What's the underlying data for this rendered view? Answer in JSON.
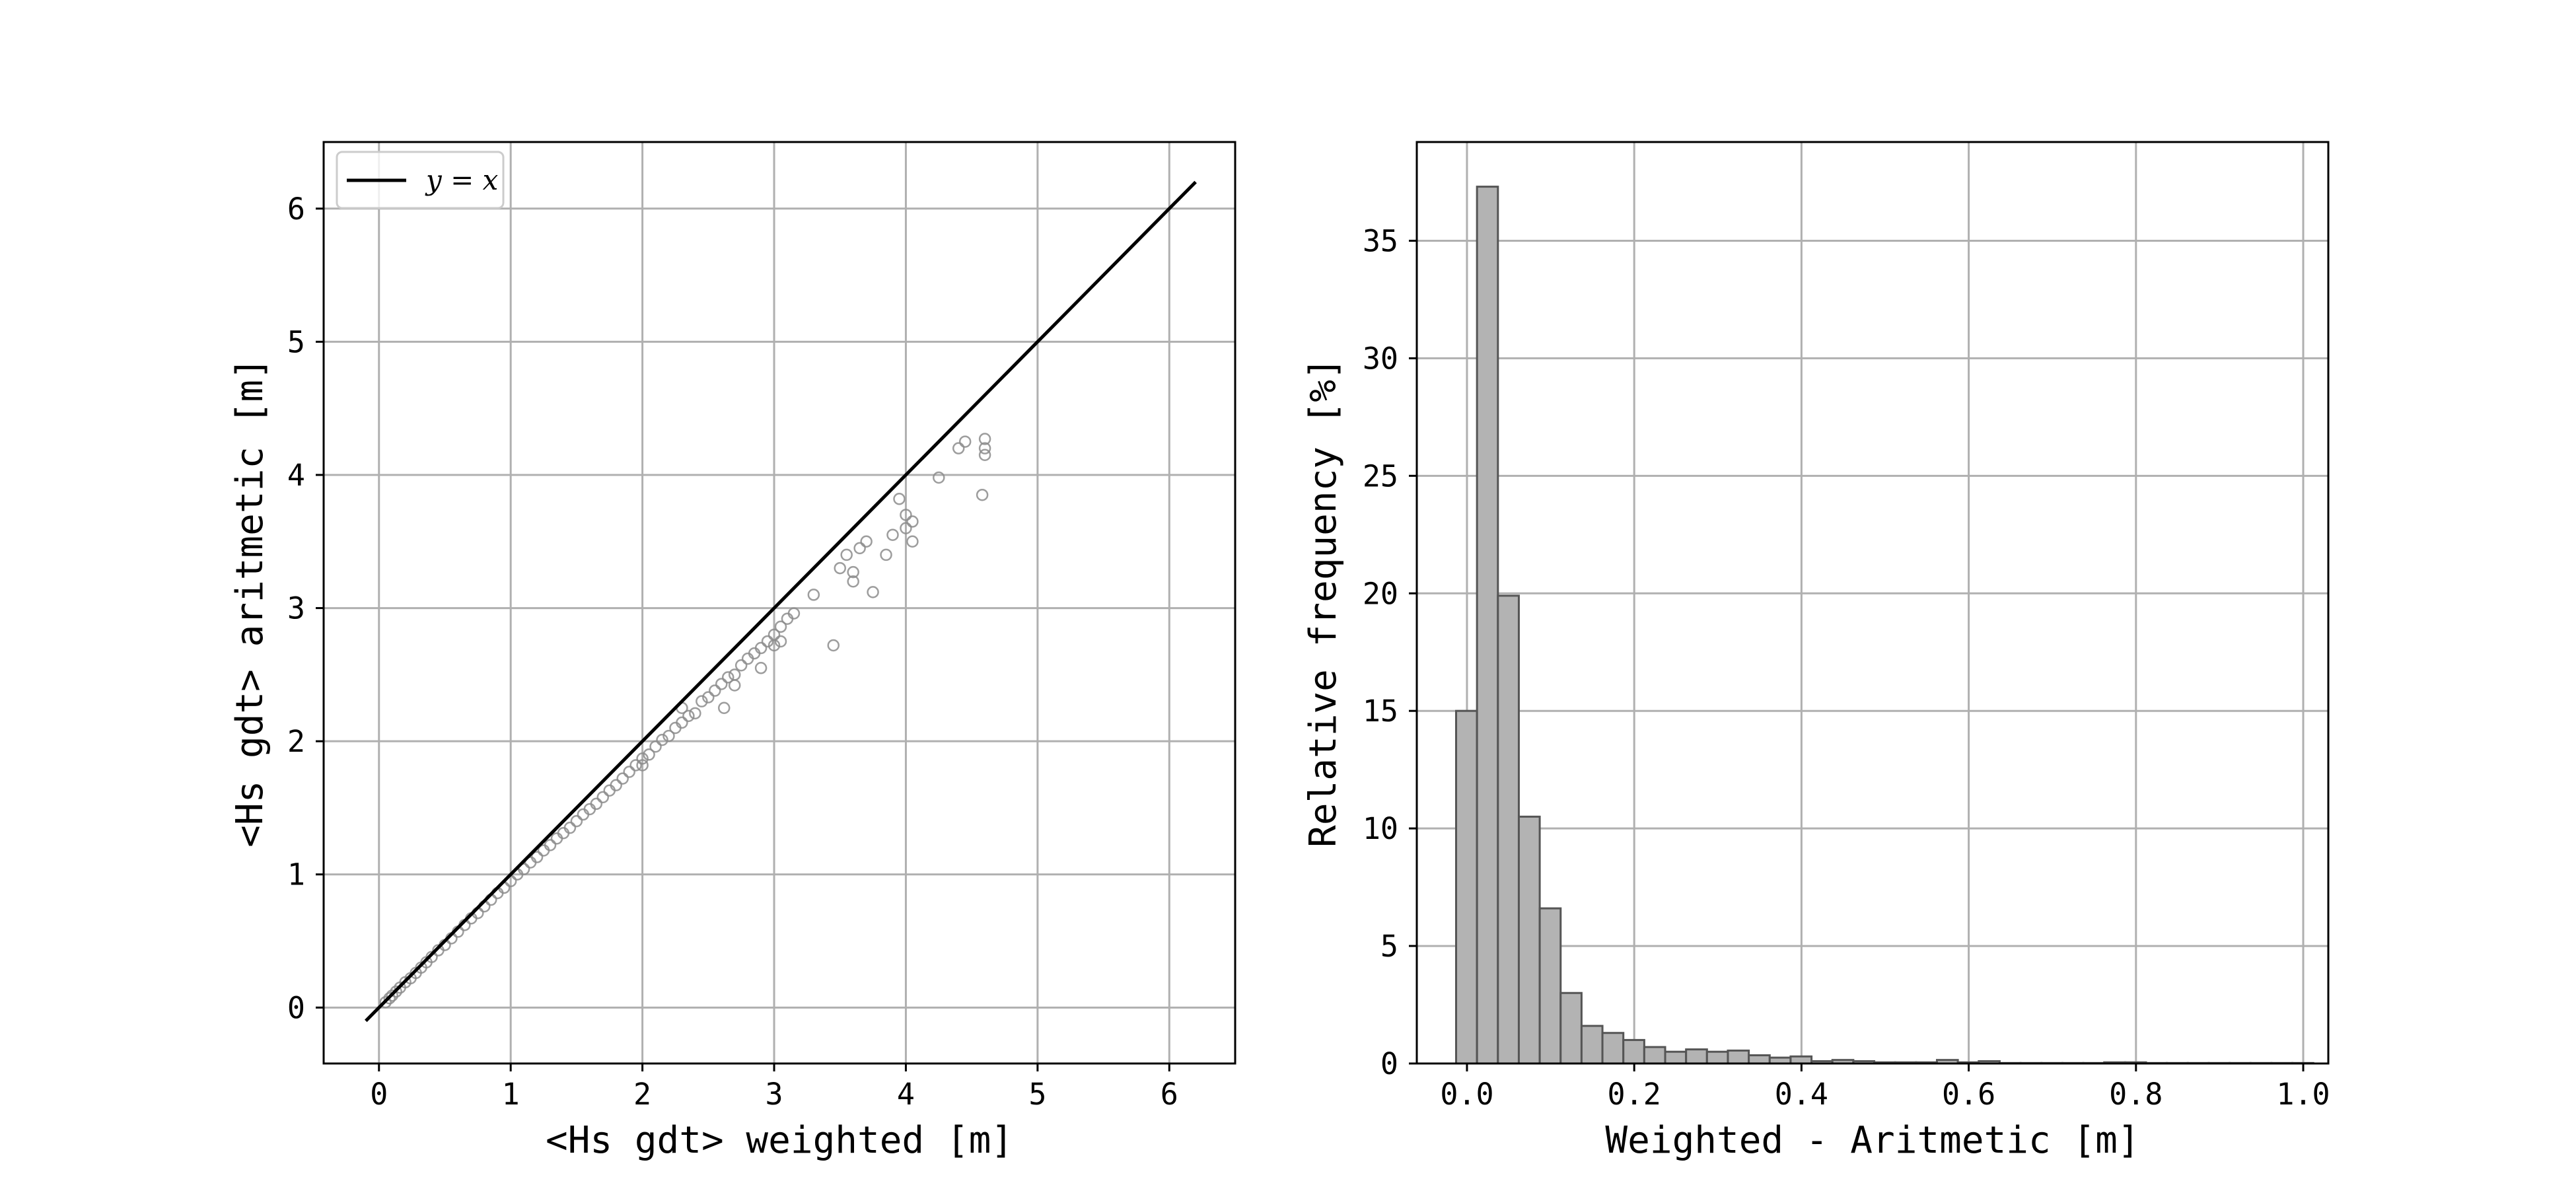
{
  "chart_data": [
    {
      "type": "scatter",
      "xlabel": "<Hs gdt> weighted [m]",
      "ylabel": "<Hs gdt> aritmetic [m]",
      "xlim": [
        -0.42,
        6.5
      ],
      "ylim": [
        -0.42,
        6.5
      ],
      "xticks": [
        "0",
        "1",
        "2",
        "3",
        "4",
        "5",
        "6"
      ],
      "yticks": [
        "0",
        "1",
        "2",
        "3",
        "4",
        "5",
        "6"
      ],
      "grid": true,
      "legend": {
        "position": "top-left",
        "entries": [
          "y = x"
        ]
      },
      "reference_line": {
        "name": "y = x",
        "x": [
          -0.1,
          6.2
        ],
        "y": [
          -0.1,
          6.2
        ],
        "color": "#000000"
      },
      "marker_color": "#8c8c8c",
      "series": [
        {
          "points": [
            [
              0.05,
              0.04
            ],
            [
              0.08,
              0.07
            ],
            [
              0.1,
              0.09
            ],
            [
              0.13,
              0.12
            ],
            [
              0.16,
              0.15
            ],
            [
              0.2,
              0.19
            ],
            [
              0.24,
              0.22
            ],
            [
              0.28,
              0.26
            ],
            [
              0.32,
              0.3
            ],
            [
              0.36,
              0.34
            ],
            [
              0.4,
              0.38
            ],
            [
              0.45,
              0.43
            ],
            [
              0.5,
              0.47
            ],
            [
              0.55,
              0.52
            ],
            [
              0.6,
              0.57
            ],
            [
              0.65,
              0.62
            ],
            [
              0.7,
              0.67
            ],
            [
              0.75,
              0.71
            ],
            [
              0.8,
              0.76
            ],
            [
              0.85,
              0.81
            ],
            [
              0.9,
              0.86
            ],
            [
              0.95,
              0.9
            ],
            [
              1.0,
              0.95
            ],
            [
              1.05,
              1.0
            ],
            [
              1.1,
              1.04
            ],
            [
              1.15,
              1.09
            ],
            [
              1.2,
              1.13
            ],
            [
              1.25,
              1.18
            ],
            [
              1.3,
              1.22
            ],
            [
              1.35,
              1.27
            ],
            [
              1.4,
              1.31
            ],
            [
              1.45,
              1.35
            ],
            [
              1.5,
              1.4
            ],
            [
              1.55,
              1.45
            ],
            [
              1.6,
              1.49
            ],
            [
              1.65,
              1.53
            ],
            [
              1.7,
              1.58
            ],
            [
              1.75,
              1.63
            ],
            [
              1.8,
              1.67
            ],
            [
              1.85,
              1.72
            ],
            [
              1.9,
              1.77
            ],
            [
              1.95,
              1.82
            ],
            [
              2.0,
              1.87
            ],
            [
              2.0,
              1.82
            ],
            [
              2.05,
              1.9
            ],
            [
              2.1,
              1.96
            ],
            [
              2.15,
              2.01
            ],
            [
              2.2,
              2.04
            ],
            [
              2.25,
              2.1
            ],
            [
              2.3,
              2.14
            ],
            [
              2.35,
              2.19
            ],
            [
              2.4,
              2.21
            ],
            [
              2.45,
              2.3
            ],
            [
              2.5,
              2.33
            ],
            [
              2.55,
              2.38
            ],
            [
              2.6,
              2.43
            ],
            [
              2.65,
              2.48
            ],
            [
              2.7,
              2.5
            ],
            [
              2.75,
              2.57
            ],
            [
              2.8,
              2.62
            ],
            [
              2.85,
              2.66
            ],
            [
              2.9,
              2.7
            ],
            [
              2.95,
              2.75
            ],
            [
              3.0,
              2.8
            ],
            [
              3.05,
              2.86
            ],
            [
              3.1,
              2.92
            ],
            [
              3.15,
              2.96
            ],
            [
              3.3,
              3.1
            ],
            [
              3.45,
              2.72
            ],
            [
              3.5,
              3.3
            ],
            [
              3.55,
              3.4
            ],
            [
              3.6,
              3.2
            ],
            [
              3.6,
              3.27
            ],
            [
              3.65,
              3.45
            ],
            [
              3.7,
              3.5
            ],
            [
              3.75,
              3.12
            ],
            [
              3.85,
              3.4
            ],
            [
              3.9,
              3.55
            ],
            [
              3.95,
              3.82
            ],
            [
              4.0,
              3.6
            ],
            [
              4.0,
              3.7
            ],
            [
              4.05,
              3.5
            ],
            [
              4.05,
              3.65
            ],
            [
              4.25,
              3.98
            ],
            [
              4.4,
              4.2
            ],
            [
              4.45,
              4.25
            ],
            [
              4.6,
              4.27
            ],
            [
              4.6,
              4.15
            ],
            [
              4.6,
              4.2
            ],
            [
              4.58,
              3.85
            ],
            [
              2.3,
              2.25
            ],
            [
              2.7,
              2.42
            ],
            [
              2.9,
              2.55
            ],
            [
              3.05,
              2.75
            ],
            [
              3.0,
              2.72
            ],
            [
              2.62,
              2.25
            ]
          ]
        }
      ]
    },
    {
      "type": "bar",
      "xlabel": "Weighted - Aritmetic [m]",
      "ylabel": "Relative frequency [%]",
      "xlim": [
        -0.06,
        1.03
      ],
      "ylim": [
        0,
        39.2
      ],
      "xticks": [
        "0.0",
        "0.2",
        "0.4",
        "0.6",
        "0.8",
        "1.0"
      ],
      "yticks": [
        "0",
        "5",
        "10",
        "15",
        "20",
        "25",
        "30",
        "35"
      ],
      "grid": true,
      "bar_color": "#b3b3b3",
      "edge_color": "#555555",
      "bin_width": 0.025,
      "bin_start": -0.013,
      "values": [
        15,
        37.3,
        19.9,
        10.5,
        6.6,
        3.0,
        1.6,
        1.3,
        1.0,
        0.7,
        0.5,
        0.6,
        0.5,
        0.55,
        0.35,
        0.25,
        0.3,
        0.1,
        0.15,
        0.1,
        0.05,
        0.05,
        0.05,
        0.15,
        0.05,
        0.1,
        0.02,
        0.02,
        0.02,
        0.02,
        0.02,
        0.05,
        0.05,
        0.02,
        0.02,
        0.02,
        0.02,
        0.02,
        0.02,
        0.02,
        0.02
      ]
    }
  ]
}
